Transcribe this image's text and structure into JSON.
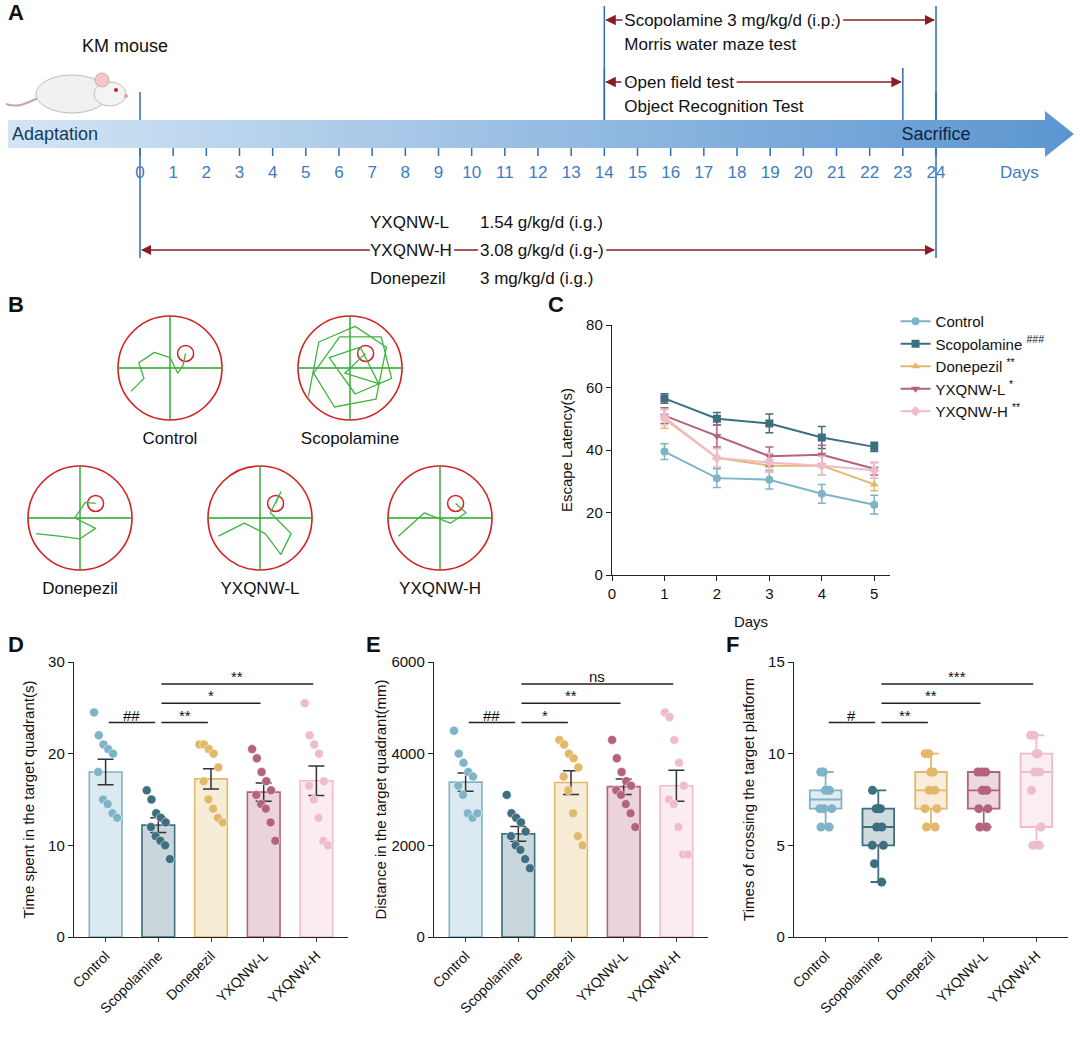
{
  "diagram": {
    "A": {
      "letter": "A",
      "animal": "KM mouse",
      "adaptation": "Adaptation",
      "sacrifice": "Sacrifice",
      "days_label": "Days",
      "days": [
        0,
        1,
        2,
        3,
        4,
        5,
        6,
        7,
        8,
        9,
        10,
        11,
        12,
        13,
        14,
        15,
        16,
        17,
        18,
        19,
        20,
        21,
        22,
        23,
        24
      ],
      "scopolamine": {
        "texts": [
          "Scopolamine 3 mg/kg/d (i.p.)",
          "Morris water maze test"
        ],
        "start": 14,
        "end": 24
      },
      "behaviour": {
        "texts": [
          "Open field test",
          "Object Recognition Test"
        ],
        "start": 14,
        "end": 23
      },
      "treatment": {
        "start": 0,
        "end": 24,
        "groups": [
          {
            "name": "YXQNW-L",
            "dose": "1.54 g/kg/d (i.g.)"
          },
          {
            "name": "YXQNW-H",
            "dose": "3.08 g/kg/d (i.g-)"
          },
          {
            "name": "Donepezil",
            "dose": "3 mg/kg/d (i.g.)"
          }
        ]
      }
    },
    "B": {
      "letter": "B",
      "groups": [
        "Control",
        "Scopolamine",
        "Donepezil",
        "YXQNW-L",
        "YXQNW-H"
      ]
    }
  },
  "chart_data": [
    {
      "letter": "C",
      "type": "line",
      "x": [
        1,
        2,
        3,
        4,
        5
      ],
      "xlabel": "Days",
      "ylabel": "Escape Latency(s)",
      "xlim": [
        0,
        5.3
      ],
      "xticks": [
        0,
        1,
        2,
        3,
        4,
        5
      ],
      "ylim": [
        0,
        80
      ],
      "yticks": [
        0,
        20,
        40,
        60,
        80
      ],
      "grid": false,
      "legend": "upper right",
      "series": [
        {
          "name": "Control",
          "color": "#7fb3c8",
          "marker": "circle",
          "values": [
            39.5,
            31,
            30.5,
            26,
            22.5
          ],
          "error": [
            2.5,
            3,
            3,
            3,
            3
          ]
        },
        {
          "name": "Scopolamine",
          "sig": "###",
          "color": "#3e6f80",
          "marker": "square",
          "values": [
            56.5,
            50,
            48.5,
            44,
            41
          ],
          "error": [
            1.5,
            2,
            3,
            3.5,
            1.5
          ]
        },
        {
          "name": "Donepezil",
          "sig": "**",
          "color": "#e2b96b",
          "marker": "triangle-up",
          "values": [
            50,
            37.5,
            35,
            35,
            29
          ],
          "error": [
            3,
            3,
            2,
            3,
            2
          ]
        },
        {
          "name": "YXQNW-L",
          "sig": "*",
          "color": "#b5627e",
          "marker": "triangle-down",
          "values": [
            51,
            44.5,
            38,
            38.5,
            34
          ],
          "error": [
            2.5,
            3.5,
            3,
            3,
            2
          ]
        },
        {
          "name": "YXQNW-H",
          "sig": "**",
          "color": "#efbccb",
          "marker": "diamond",
          "values": [
            50.5,
            37.5,
            36,
            35,
            33.5
          ],
          "error": [
            2.5,
            3,
            3,
            3,
            2.5
          ]
        }
      ]
    },
    {
      "letter": "D",
      "type": "bar",
      "categories": [
        "Control",
        "Scopolamine",
        "Donepezil",
        "YXQNW-L",
        "YXQNW-H"
      ],
      "values": [
        18,
        12.2,
        17.25,
        15.8,
        17.05
      ],
      "error": [
        1.4,
        0.8,
        1.1,
        1.0,
        1.6
      ],
      "points": [
        [
          24.5,
          22,
          21,
          20.5,
          20,
          18,
          15,
          14.5,
          13.5,
          13
        ],
        [
          16,
          15,
          13.5,
          13,
          12.5,
          12,
          11,
          10.5,
          10,
          8.5
        ],
        [
          21,
          21,
          20.5,
          20,
          18.5,
          17,
          15,
          14,
          13,
          12.5
        ],
        [
          20.5,
          19.5,
          18,
          17,
          16,
          15.5,
          14.5,
          14,
          12.5,
          10.5
        ],
        [
          25.5,
          22,
          21,
          20,
          17,
          16.5,
          15,
          13,
          10.5,
          10
        ]
      ],
      "colors": [
        "#7fb3c8",
        "#3e6f80",
        "#e2b96b",
        "#b5627e",
        "#efbccb"
      ],
      "ylabel": "Time spent in the target quadrant(s)",
      "ylim": [
        0,
        30
      ],
      "yticks": [
        0,
        10,
        20,
        30
      ],
      "grid": false,
      "comparisons": [
        {
          "from": "Control",
          "to": "Scopolamine",
          "label": "##"
        },
        {
          "from": "Scopolamine",
          "to": "Donepezil",
          "label": "**"
        },
        {
          "from": "Scopolamine",
          "to": "YXQNW-L",
          "label": "*"
        },
        {
          "from": "Scopolamine",
          "to": "YXQNW-H",
          "label": "**"
        }
      ]
    },
    {
      "letter": "E",
      "type": "bar",
      "categories": [
        "Control",
        "Scopolamine",
        "Donepezil",
        "YXQNW-L",
        "YXQNW-H"
      ],
      "values": [
        3380,
        2250,
        3370,
        3280,
        3300
      ],
      "error": [
        200,
        160,
        260,
        170,
        340
      ],
      "points": [
        [
          4500,
          4000,
          3800,
          3600,
          3500,
          3300,
          3100,
          2700,
          2600,
          2700
        ],
        [
          3100,
          2700,
          2600,
          2500,
          2300,
          2200,
          2000,
          1900,
          1700,
          1500
        ],
        [
          4300,
          4200,
          4000,
          3900,
          3700,
          3500,
          3200,
          2700,
          2200,
          2000
        ],
        [
          4300,
          3900,
          3600,
          3400,
          3300,
          3200,
          3100,
          2900,
          2700,
          2400
        ],
        [
          4900,
          4800,
          4300,
          3800,
          3300,
          3000,
          2900,
          2400,
          1800,
          1800
        ]
      ],
      "colors": [
        "#7fb3c8",
        "#3e6f80",
        "#e2b96b",
        "#b5627e",
        "#efbccb"
      ],
      "ylabel": "Distance in the target quadrant(mm)",
      "ylim": [
        0,
        6000
      ],
      "yticks": [
        0,
        2000,
        4000,
        6000
      ],
      "grid": false,
      "comparisons": [
        {
          "from": "Control",
          "to": "Scopolamine",
          "label": "##"
        },
        {
          "from": "Scopolamine",
          "to": "Donepezil",
          "label": "*"
        },
        {
          "from": "Scopolamine",
          "to": "YXQNW-L",
          "label": "**"
        },
        {
          "from": "Scopolamine",
          "to": "YXQNW-H",
          "label": "ns"
        }
      ]
    },
    {
      "letter": "F",
      "type": "box",
      "categories": [
        "Control",
        "Scopolamine",
        "Donepezil",
        "YXQNW-L",
        "YXQNW-H"
      ],
      "points": [
        [
          6,
          6,
          7,
          7,
          7,
          8,
          8,
          8,
          9,
          9
        ],
        [
          3,
          4,
          5,
          5,
          6,
          6,
          7,
          7,
          7,
          8
        ],
        [
          6,
          6,
          7,
          7,
          8,
          8,
          9,
          9,
          10,
          10
        ],
        [
          6,
          6,
          7,
          7,
          8,
          8,
          8,
          9,
          9,
          9
        ],
        [
          5,
          5,
          6,
          8,
          9,
          9,
          10,
          10,
          11,
          11
        ]
      ],
      "colors": [
        "#7fb3c8",
        "#3e6f80",
        "#e2b96b",
        "#b5627e",
        "#efbccb"
      ],
      "ylabel": "Times of crossing the target platform",
      "ylim": [
        0,
        15
      ],
      "yticks": [
        0,
        5,
        10,
        15
      ],
      "grid": false,
      "comparisons": [
        {
          "from": "Control",
          "to": "Scopolamine",
          "label": "#"
        },
        {
          "from": "Scopolamine",
          "to": "Donepezil",
          "label": "**"
        },
        {
          "from": "Scopolamine",
          "to": "YXQNW-L",
          "label": "**"
        },
        {
          "from": "Scopolamine",
          "to": "YXQNW-H",
          "label": "***"
        }
      ]
    }
  ]
}
